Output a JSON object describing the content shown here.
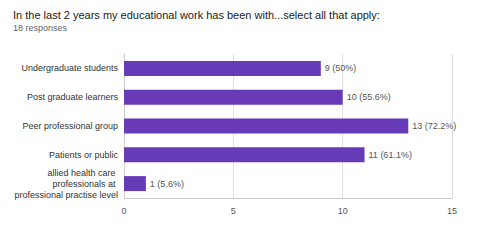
{
  "chart_data": {
    "type": "bar",
    "orientation": "horizontal",
    "title": "In the last 2 years my educational work has been with...select all that apply:",
    "subtitle": "18 responses",
    "categories": [
      "Undergraduate students",
      "Post graduate learners",
      "Peer professional group",
      "Patients or public",
      "allied health care professionals at professional practise level"
    ],
    "values": [
      9,
      10,
      13,
      11,
      1
    ],
    "value_labels": [
      "9 (50%)",
      "10 (55.6%)",
      "13 (72.2%)",
      "11 (61.1%)",
      "1 (5.6%)"
    ],
    "data_labels": true,
    "color": "#673ab7",
    "xlim": [
      0,
      15
    ],
    "xticks": [
      0,
      5,
      10,
      15
    ],
    "grid": true
  }
}
